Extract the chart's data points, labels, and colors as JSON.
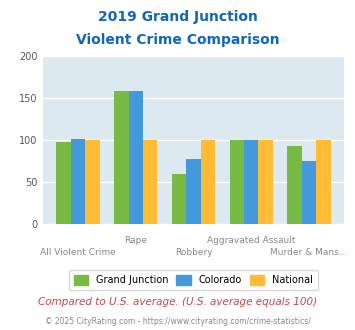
{
  "title_line1": "2019 Grand Junction",
  "title_line2": "Violent Crime Comparison",
  "categories": [
    "All Violent Crime",
    "Rape",
    "Robbery",
    "Aggravated Assault",
    "Murder & Mans..."
  ],
  "series": {
    "Grand Junction": [
      98,
      158,
      60,
      100,
      93
    ],
    "Colorado": [
      101,
      158,
      78,
      100,
      75
    ],
    "National": [
      100,
      100,
      100,
      100,
      100
    ]
  },
  "colors": {
    "Grand Junction": "#77bb44",
    "Colorado": "#4499dd",
    "National": "#ffbb33"
  },
  "ylim": [
    0,
    200
  ],
  "yticks": [
    0,
    50,
    100,
    150,
    200
  ],
  "upper_cats": [
    "Rape",
    "Aggravated Assault"
  ],
  "lower_cats": [
    "All Violent Crime",
    "Robbery",
    "Murder & Mans..."
  ],
  "background_color": "#dce9f0",
  "title_color": "#1166bb",
  "axis_label_color": "#888888",
  "footer_text": "Compared to U.S. average. (U.S. average equals 100)",
  "footer_color": "#cc4444",
  "copyright_text": "© 2025 CityRating.com - https://www.cityrating.com/crime-statistics/",
  "copyright_color": "#888888",
  "grid_color": "#ffffff",
  "bar_width": 0.25
}
